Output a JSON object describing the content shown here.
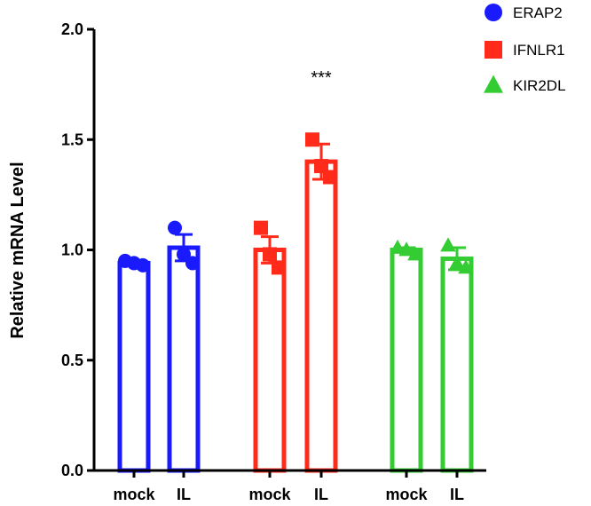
{
  "chart_data": {
    "type": "bar",
    "title": "",
    "xlabel": "",
    "ylabel": "Relative mRNA Level",
    "ylim": [
      0,
      2.0
    ],
    "yticks": [
      "0.0",
      "0.5",
      "1.0",
      "1.5",
      "2.0"
    ],
    "grid": false,
    "legend_position": "top-right",
    "categories": [
      "mock",
      "IL",
      "mock",
      "IL",
      "mock",
      "IL"
    ],
    "series": [
      {
        "name": "ERAP2",
        "color": "#1a1aff",
        "marker": "circle",
        "bars": [
          {
            "category": "mock",
            "mean": 0.94,
            "error": 0.0,
            "points": [
              0.95,
              0.94,
              0.93
            ]
          },
          {
            "category": "IL",
            "mean": 1.01,
            "error": 0.06,
            "points": [
              1.1,
              0.98,
              0.94
            ]
          }
        ]
      },
      {
        "name": "IFNLR1",
        "color": "#ff2a1a",
        "marker": "square",
        "bars": [
          {
            "category": "mock",
            "mean": 1.0,
            "error": 0.06,
            "points": [
              1.1,
              0.98,
              0.92
            ]
          },
          {
            "category": "IL",
            "mean": 1.4,
            "error": 0.08,
            "points": [
              1.5,
              1.38,
              1.33
            ]
          }
        ]
      },
      {
        "name": "KIR2DL",
        "color": "#33cc33",
        "marker": "triangle",
        "bars": [
          {
            "category": "mock",
            "mean": 1.0,
            "error": 0.01,
            "points": [
              1.01,
              1.0,
              0.98
            ]
          },
          {
            "category": "IL",
            "mean": 0.96,
            "error": 0.05,
            "points": [
              1.02,
              0.94,
              0.92
            ]
          }
        ]
      }
    ],
    "annotations": [
      {
        "text": "***",
        "series": "IFNLR1",
        "category": "IL"
      }
    ]
  }
}
